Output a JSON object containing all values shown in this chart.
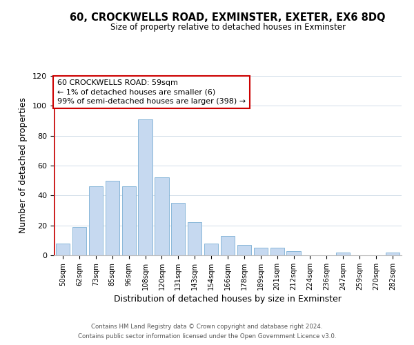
{
  "title_line1": "60, CROCKWELLS ROAD, EXMINSTER, EXETER, EX6 8DQ",
  "title_line2": "Size of property relative to detached houses in Exminster",
  "xlabel": "Distribution of detached houses by size in Exminster",
  "ylabel": "Number of detached properties",
  "bar_labels": [
    "50sqm",
    "62sqm",
    "73sqm",
    "85sqm",
    "96sqm",
    "108sqm",
    "120sqm",
    "131sqm",
    "143sqm",
    "154sqm",
    "166sqm",
    "178sqm",
    "189sqm",
    "201sqm",
    "212sqm",
    "224sqm",
    "236sqm",
    "247sqm",
    "259sqm",
    "270sqm",
    "282sqm"
  ],
  "bar_heights": [
    8,
    19,
    46,
    50,
    46,
    91,
    52,
    35,
    22,
    8,
    13,
    7,
    5,
    5,
    3,
    0,
    0,
    2,
    0,
    0,
    2
  ],
  "bar_color": "#c6d9f0",
  "bar_edge_color": "#7bafd4",
  "annotation_line1": "60 CROCKWELLS ROAD: 59sqm",
  "annotation_line2": "← 1% of detached houses are smaller (6)",
  "annotation_line3": "99% of semi-detached houses are larger (398) →",
  "annotation_box_edge_color": "#cc0000",
  "annotation_box_face_color": "#ffffff",
  "marker_line_color": "#cc0000",
  "ylim": [
    0,
    120
  ],
  "yticks": [
    0,
    20,
    40,
    60,
    80,
    100,
    120
  ],
  "grid_color": "#d0dce8",
  "background_color": "#ffffff",
  "footer_line1": "Contains HM Land Registry data © Crown copyright and database right 2024.",
  "footer_line2": "Contains public sector information licensed under the Open Government Licence v3.0."
}
